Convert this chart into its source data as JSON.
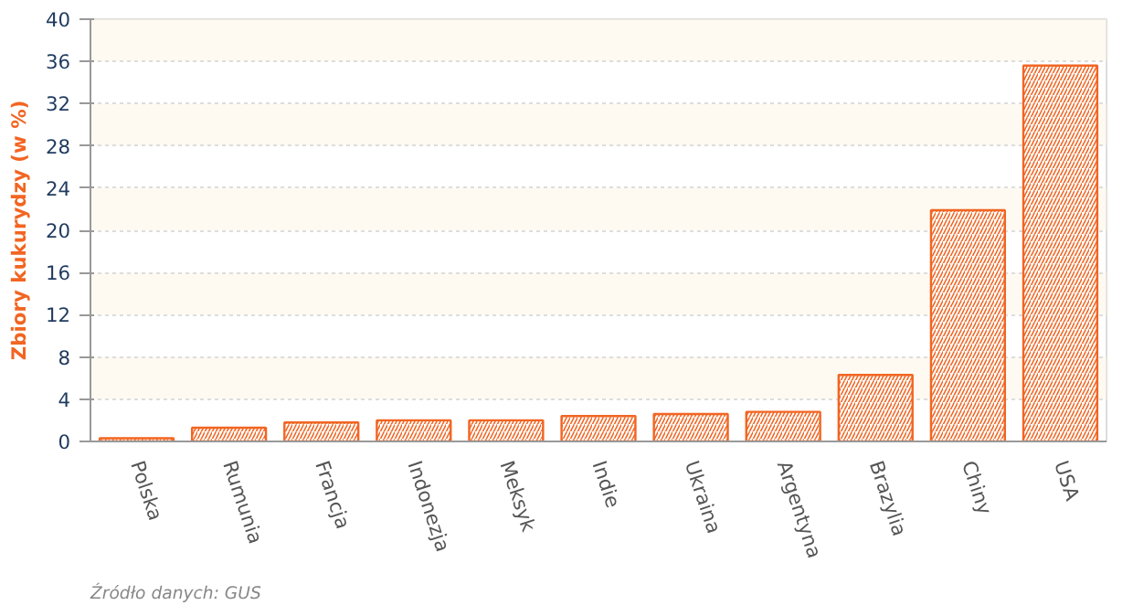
{
  "chart_data": {
    "type": "bar",
    "ylabel": "Zbiory kukurydzy (w %)",
    "categories": [
      "Polska",
      "Rumunia",
      "Francja",
      "Indonezja",
      "Meksyk",
      "Indie",
      "Ukraina",
      "Argentyna",
      "Brazylia",
      "Chiny",
      "USA"
    ],
    "values": [
      0.3,
      1.3,
      1.8,
      2.0,
      2.0,
      2.4,
      2.6,
      2.8,
      6.3,
      21.9,
      35.6
    ],
    "color": "#f26522",
    "ylim": [
      0,
      40
    ],
    "yticks": [
      0,
      4,
      8,
      12,
      16,
      20,
      24,
      28,
      32,
      36,
      40
    ],
    "grid": "y",
    "annotations": [
      "Źródło danych: GUS"
    ]
  }
}
